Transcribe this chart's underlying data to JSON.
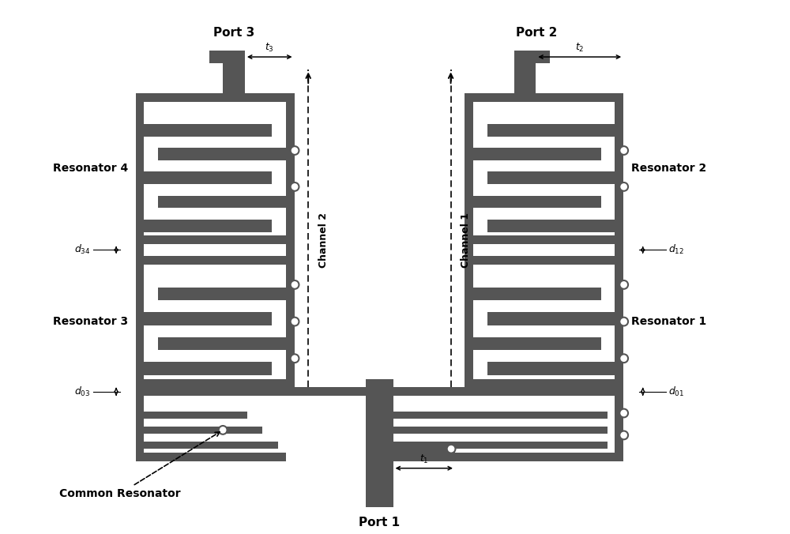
{
  "metal_color": "#555555",
  "bg_color": "white",
  "figsize": [
    10.0,
    6.76
  ],
  "dpi": 100,
  "annotations": {
    "port1": "Port 1",
    "port2": "Port 2",
    "port3": "Port 3",
    "res1": "Resonator 1",
    "res2": "Resonator 2",
    "res3": "Resonator 3",
    "res4": "Resonator 4",
    "common": "Common Resonator",
    "ch1": "Channel 1",
    "ch2": "Channel 2",
    "t1": "$t_1$",
    "t2": "$t_2$",
    "t3": "$t_3$",
    "d01": "$d_{01}$",
    "d03": "$d_{03}$",
    "d12": "$d_{12}$",
    "d34": "$d_{34}$"
  },
  "layout": {
    "xlim": [
      0,
      100
    ],
    "ylim": [
      0,
      67.6
    ]
  }
}
